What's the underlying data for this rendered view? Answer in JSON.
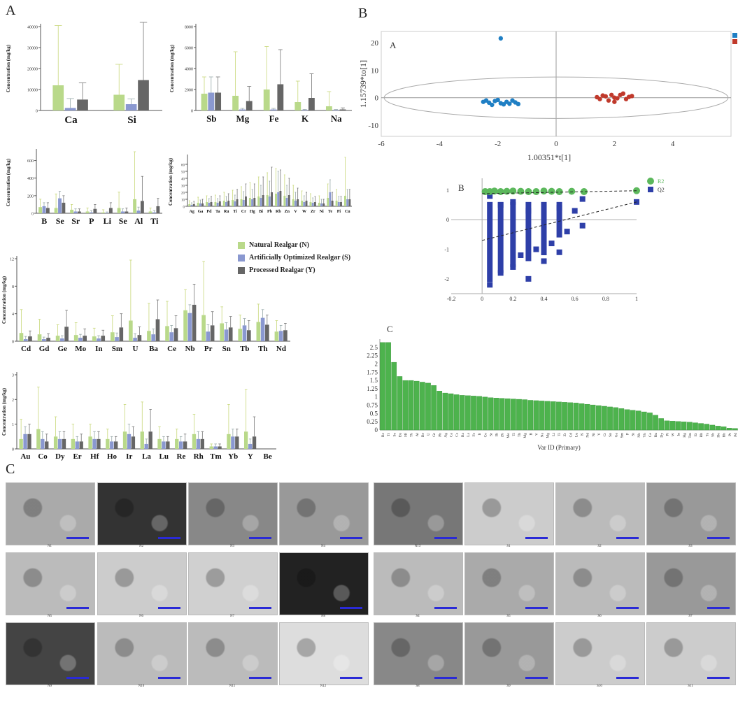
{
  "labels": {
    "panelA": "A",
    "panelB": "B",
    "panelC": "C",
    "subA": "A",
    "subB": "B",
    "subC": "C"
  },
  "colors": {
    "natural": "#b9d98a",
    "optimized": "#8a98d0",
    "processed": "#666666",
    "green": "#5cb85c",
    "blue": "#2e3fa8",
    "red": "#c0392b",
    "pointBlue": "#1f7fc4"
  },
  "legend": {
    "natural": "Natural Realgar (N)",
    "optimized": "Artificially Optimized Realgar (S)",
    "processed": "Processed Realgar (Y)"
  },
  "chart_data": [
    {
      "type": "bar",
      "id": "bar1",
      "categories": [
        "Ca",
        "Si"
      ],
      "ylabel": "Concentration (mg/kg)",
      "ylim": [
        0,
        40000
      ],
      "yticks": [
        0,
        10000,
        20000,
        30000,
        40000
      ],
      "series": [
        {
          "values": [
            12000,
            7500
          ],
          "err": [
            28500,
            14500
          ]
        },
        {
          "values": [
            1200,
            3000
          ],
          "err": [
            4500,
            2500
          ]
        },
        {
          "values": [
            5200,
            14500
          ],
          "err": [
            8000,
            27500
          ]
        }
      ]
    },
    {
      "type": "bar",
      "id": "bar2",
      "categories": [
        "Sb",
        "Mg",
        "Fe",
        "K",
        "Na"
      ],
      "ylabel": "Concentration (mg/kg)",
      "ylim": [
        0,
        8000
      ],
      "yticks": [
        0,
        2000,
        4000,
        6000,
        8000
      ],
      "series": [
        {
          "values": [
            1600,
            1400,
            2000,
            800,
            400
          ],
          "err": [
            1600,
            4200,
            4100,
            2000,
            1400
          ]
        },
        {
          "values": [
            1700,
            100,
            100,
            50,
            50
          ],
          "err": [
            1500,
            100,
            100,
            50,
            50
          ]
        },
        {
          "values": [
            1700,
            900,
            2500,
            1200,
            100
          ],
          "err": [
            1500,
            1400,
            3300,
            2300,
            150
          ]
        }
      ]
    },
    {
      "type": "bar",
      "id": "bar3",
      "categories": [
        "B",
        "Se",
        "Sr",
        "P",
        "Li",
        "Se",
        "Al",
        "Ti"
      ],
      "ylabel": "Concentration (mg/kg)",
      "ylim": [
        0,
        700
      ],
      "yticks": [
        0,
        200,
        400,
        600
      ],
      "series": [
        {
          "values": [
            70,
            60,
            40,
            20,
            10,
            60,
            160,
            20
          ],
          "err": [
            90,
            160,
            60,
            40,
            30,
            180,
            540,
            40
          ]
        },
        {
          "values": [
            80,
            170,
            20,
            10,
            5,
            20,
            30,
            10
          ],
          "err": [
            40,
            80,
            30,
            20,
            10,
            30,
            40,
            20
          ]
        },
        {
          "values": [
            60,
            120,
            20,
            50,
            60,
            20,
            140,
            80
          ],
          "err": [
            60,
            80,
            30,
            50,
            60,
            40,
            280,
            90
          ]
        }
      ]
    },
    {
      "type": "bar",
      "id": "bar4",
      "categories": [
        "Ag",
        "Ga",
        "Pd",
        "Ta",
        "Ru",
        "Ti",
        "Cr",
        "Hg",
        "Bi",
        "Pb",
        "Rb",
        "Zn",
        "V",
        "W",
        "Zr",
        "Ni",
        "Te",
        "Pi",
        "Cu"
      ],
      "ylabel": "Concentration (mg/kg)",
      "ylim": [
        0,
        70
      ],
      "yticks": [
        0,
        10,
        20,
        30,
        40,
        50,
        60
      ],
      "series": [
        {
          "values": [
            3,
            5,
            6,
            6,
            8,
            9,
            10,
            12,
            14,
            16,
            18,
            15,
            10,
            8,
            6,
            5,
            12,
            8,
            15
          ],
          "err": [
            5,
            8,
            9,
            10,
            12,
            14,
            18,
            22,
            28,
            32,
            36,
            30,
            20,
            14,
            12,
            10,
            20,
            16,
            55
          ]
        },
        {
          "values": [
            2,
            4,
            5,
            5,
            6,
            7,
            9,
            10,
            12,
            14,
            20,
            12,
            8,
            6,
            5,
            4,
            20,
            6,
            10
          ],
          "err": [
            3,
            5,
            6,
            6,
            8,
            9,
            12,
            14,
            18,
            22,
            30,
            18,
            12,
            9,
            7,
            6,
            18,
            8,
            14
          ]
        },
        {
          "values": [
            3,
            4,
            6,
            7,
            8,
            10,
            14,
            12,
            16,
            20,
            22,
            16,
            10,
            8,
            6,
            4,
            8,
            6,
            10
          ],
          "err": [
            4,
            6,
            8,
            8,
            10,
            14,
            18,
            20,
            26,
            36,
            30,
            24,
            16,
            12,
            8,
            6,
            12,
            8,
            14
          ]
        }
      ]
    },
    {
      "type": "bar",
      "id": "bar5",
      "categories": [
        "Cd",
        "Gd",
        "Ge",
        "Mo",
        "In",
        "Sm",
        "U",
        "Ba",
        "Ce",
        "Nb",
        "Pr",
        "Sn",
        "Tb",
        "Th",
        "Nd"
      ],
      "ylabel": "Concentration (mg/kg)",
      "ylim": [
        0,
        12
      ],
      "yticks": [
        0,
        4,
        8,
        12
      ],
      "series": [
        {
          "values": [
            1.2,
            1.0,
            0.8,
            0.9,
            0.7,
            1.3,
            3.0,
            1.5,
            2.2,
            4.5,
            3.8,
            2.6,
            1.8,
            2.8,
            1.4
          ],
          "err": [
            3.4,
            2.2,
            1.6,
            1.8,
            1.2,
            2.4,
            8.8,
            4.0,
            3.6,
            3.0,
            7.8,
            2.4,
            2.0,
            2.6,
            1.6
          ]
        },
        {
          "values": [
            0.3,
            0.3,
            0.4,
            0.5,
            0.4,
            0.6,
            0.5,
            1.0,
            1.3,
            4.1,
            1.4,
            1.7,
            2.3,
            3.4,
            1.5
          ],
          "err": [
            0.4,
            0.3,
            0.4,
            0.5,
            0.4,
            0.6,
            0.6,
            0.8,
            1.0,
            1.2,
            1.0,
            1.0,
            1.0,
            1.2,
            0.8
          ]
        },
        {
          "values": [
            0.7,
            0.5,
            2.1,
            0.8,
            0.8,
            2.0,
            0.9,
            3.2,
            1.9,
            5.3,
            2.3,
            2.0,
            1.6,
            2.4,
            1.6
          ],
          "err": [
            0.8,
            0.6,
            2.4,
            1.0,
            0.8,
            2.0,
            1.2,
            2.8,
            1.8,
            3.0,
            2.0,
            1.6,
            1.4,
            1.4,
            1.0
          ]
        }
      ]
    },
    {
      "type": "bar",
      "id": "bar6",
      "categories": [
        "Au",
        "Co",
        "Dy",
        "Er",
        "Hf",
        "Ho",
        "Ir",
        "La",
        "Lu",
        "Re",
        "Rh",
        "Tm",
        "Yb",
        "Y",
        "Be"
      ],
      "ylabel": "Concentration (mg/kg)",
      "ylim": [
        0,
        3
      ],
      "yticks": [
        0,
        1,
        2,
        3
      ],
      "series": [
        {
          "values": [
            0.4,
            0.8,
            0.5,
            0.4,
            0.5,
            0.4,
            0.7,
            0.7,
            0.4,
            0.4,
            0.6,
            0.1,
            0.6,
            0.7,
            0.0
          ],
          "err": [
            0.8,
            1.7,
            0.8,
            0.6,
            0.5,
            0.4,
            1.1,
            1.2,
            0.5,
            0.4,
            0.8,
            0.1,
            1.2,
            1.7,
            0.0
          ]
        },
        {
          "values": [
            0.6,
            0.4,
            0.4,
            0.3,
            0.4,
            0.3,
            0.6,
            0.2,
            0.3,
            0.3,
            0.4,
            0.1,
            0.5,
            0.2,
            0.0
          ],
          "err": [
            0.3,
            0.3,
            0.3,
            0.2,
            0.3,
            0.2,
            0.4,
            0.2,
            0.2,
            0.2,
            0.3,
            0.1,
            0.3,
            0.2,
            0.0
          ]
        },
        {
          "values": [
            0.6,
            0.3,
            0.4,
            0.3,
            0.4,
            0.3,
            0.5,
            0.7,
            0.3,
            0.3,
            0.4,
            0.1,
            0.5,
            0.5,
            0.0
          ],
          "err": [
            0.4,
            0.3,
            0.3,
            0.3,
            0.3,
            0.2,
            0.4,
            0.9,
            0.2,
            0.3,
            0.3,
            0.1,
            0.3,
            0.8,
            0.0
          ]
        }
      ]
    },
    {
      "type": "scatter",
      "id": "scatter",
      "xlabel": "1.00351*t[1]",
      "ylabel": "1.15739*to[1]",
      "xlim": [
        -6,
        6
      ],
      "ylim": [
        -14,
        24
      ],
      "xticks": [
        -6,
        -4,
        -2,
        0,
        2,
        4
      ],
      "yticks": [
        -10,
        0,
        10,
        20
      ],
      "series": [
        {
          "name": "1",
          "points": [
            [
              -1.9,
              21.5
            ],
            [
              -2.5,
              -1.5
            ],
            [
              -2.3,
              -1.8
            ],
            [
              -2.1,
              -1.2
            ],
            [
              -1.9,
              -2.0
            ],
            [
              -1.7,
              -1.5
            ],
            [
              -1.5,
              -1.0
            ],
            [
              -2.0,
              -0.8
            ],
            [
              -1.8,
              -2.4
            ],
            [
              -2.2,
              -2.6
            ],
            [
              -1.6,
              -2.2
            ],
            [
              -1.4,
              -1.7
            ],
            [
              -2.4,
              -1.0
            ],
            [
              -1.3,
              -2.3
            ]
          ]
        },
        {
          "name": "2",
          "points": [
            [
              1.5,
              -0.5
            ],
            [
              1.7,
              0.5
            ],
            [
              1.9,
              1.0
            ],
            [
              2.1,
              -0.2
            ],
            [
              2.3,
              1.5
            ],
            [
              2.5,
              0.3
            ],
            [
              1.8,
              -1.0
            ],
            [
              2.0,
              0.0
            ],
            [
              2.2,
              1.0
            ],
            [
              2.4,
              -0.5
            ],
            [
              1.6,
              0.8
            ],
            [
              2.6,
              0.6
            ],
            [
              2.0,
              -1.5
            ],
            [
              1.4,
              0.2
            ]
          ]
        }
      ]
    },
    {
      "type": "scatter",
      "id": "perm",
      "xlim": [
        -0.2,
        1
      ],
      "ylim": [
        -2.5,
        1.4
      ],
      "xticks": [
        -0.2,
        0,
        0.2,
        0.4,
        0.6,
        0.8,
        1
      ],
      "yticks": [
        -2,
        -1,
        0,
        1
      ],
      "series": [
        {
          "name": "R2",
          "points": [
            [
              0.02,
              0.95
            ],
            [
              0.05,
              0.95
            ],
            [
              0.08,
              0.97
            ],
            [
              0.12,
              0.95
            ],
            [
              0.16,
              0.96
            ],
            [
              0.2,
              0.97
            ],
            [
              0.25,
              0.96
            ],
            [
              0.3,
              0.95
            ],
            [
              0.35,
              0.95
            ],
            [
              0.4,
              0.97
            ],
            [
              0.45,
              0.96
            ],
            [
              0.5,
              0.95
            ],
            [
              0.58,
              0.96
            ],
            [
              0.66,
              0.95
            ],
            [
              1.0,
              0.98
            ]
          ]
        },
        {
          "name": "Q2",
          "points": [
            [
              0.05,
              -2.2
            ],
            [
              0.05,
              0.8
            ],
            [
              0.12,
              -1.8
            ],
            [
              0.12,
              0.5
            ],
            [
              0.2,
              -1.6
            ],
            [
              0.2,
              0.6
            ],
            [
              0.25,
              -1.2
            ],
            [
              0.3,
              -2.0
            ],
            [
              0.3,
              0.3
            ],
            [
              0.35,
              -1.0
            ],
            [
              0.4,
              -1.4
            ],
            [
              0.4,
              0.5
            ],
            [
              0.45,
              -0.8
            ],
            [
              0.5,
              -1.1
            ],
            [
              0.5,
              0.4
            ],
            [
              0.55,
              -0.4
            ],
            [
              0.6,
              0.3
            ],
            [
              0.65,
              -0.2
            ],
            [
              0.65,
              0.7
            ],
            [
              1.0,
              0.6
            ]
          ]
        }
      ]
    },
    {
      "type": "bar",
      "id": "vip",
      "xlabel": "Var ID (Primary)",
      "ylim": [
        0,
        2.75
      ],
      "yticks": [
        0,
        0.25,
        0.5,
        0.75,
        1,
        1.25,
        1.5,
        1.75,
        2,
        2.25,
        2.5
      ],
      "categories": [
        "Re",
        "Tr",
        "Se",
        "Eu",
        "Hf",
        "Tb",
        "Al",
        "Be",
        "U",
        "Gr",
        "Pb",
        "Ag",
        "Ca",
        "Cs",
        "Ba",
        "La",
        "Fe",
        "Ir",
        "Co",
        "Sr",
        "Bi",
        "Zb",
        "Mo",
        "Ti",
        "Th",
        "Mg",
        "B",
        "V",
        "Na",
        "Mg",
        "Li",
        "Ti",
        "Zr",
        "Cd",
        "Lu",
        "K",
        "Nd",
        "Ni",
        "Y",
        "Cr",
        "Sn",
        "Ga",
        "Sm",
        "P",
        "Si",
        "Nb",
        "Yb",
        "Ce",
        "Ru",
        "Dy",
        "Pi",
        "W",
        "In",
        "Hg",
        "Tm",
        "Er",
        "Rh",
        "Ta",
        "Sb",
        "Ho",
        "Rb",
        "Pr",
        "Pd"
      ],
      "values": [
        2.65,
        2.65,
        2.05,
        1.62,
        1.5,
        1.5,
        1.48,
        1.45,
        1.42,
        1.35,
        1.18,
        1.12,
        1.1,
        1.07,
        1.05,
        1.04,
        1.03,
        1.02,
        1.0,
        0.98,
        0.97,
        0.96,
        0.95,
        0.94,
        0.93,
        0.92,
        0.9,
        0.89,
        0.88,
        0.87,
        0.86,
        0.85,
        0.84,
        0.83,
        0.82,
        0.8,
        0.78,
        0.76,
        0.74,
        0.72,
        0.7,
        0.68,
        0.65,
        0.62,
        0.6,
        0.58,
        0.55,
        0.52,
        0.45,
        0.35,
        0.28,
        0.27,
        0.26,
        0.25,
        0.24,
        0.22,
        0.2,
        0.18,
        0.15,
        0.12,
        0.1,
        0.06,
        0.05
      ]
    }
  ],
  "tiles": [
    [
      "N1",
      "N2",
      "N3",
      "N4",
      "N13",
      "S1",
      "S2",
      "S3"
    ],
    [
      "N5",
      "N6",
      "N7",
      "N8",
      "S4",
      "S5",
      "S6",
      "S7"
    ],
    [
      "N9",
      "N10",
      "N11",
      "N12",
      "S8",
      "S9",
      "S10",
      "S11"
    ]
  ]
}
